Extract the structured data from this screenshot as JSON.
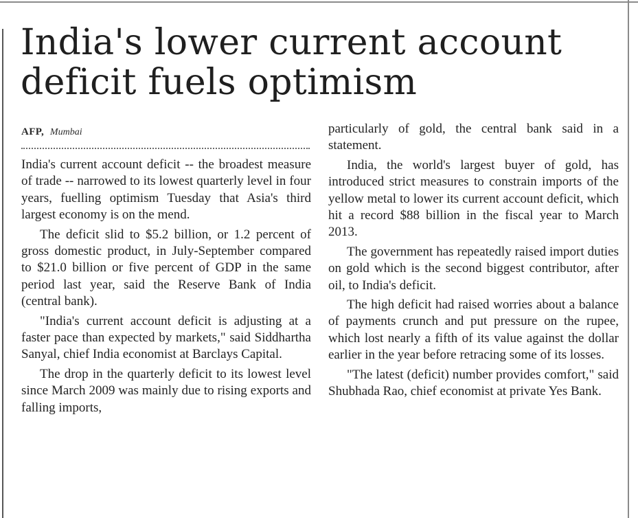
{
  "headline": "India's lower current account deficit fuels optimism",
  "byline": {
    "agency": "AFP,",
    "place": "Mumbai"
  },
  "columns": {
    "left": [
      "India's current account deficit -- the broadest measure of trade -- narrowed to its lowest quarterly level in four years, fuelling optimism Tuesday that Asia's third largest economy is on the mend.",
      "The deficit slid to $5.2 billion, or 1.2 percent of gross domestic product, in July-September compared to $21.0 billion or five percent of GDP in the same period last year, said the Reserve Bank of India (central bank).",
      "\"India's current account deficit is adjusting at a faster pace than expected by markets,\" said Siddhartha Sanyal, chief India economist at Barclays Capital.",
      "The drop in the quarterly deficit to its lowest level since March 2009 was mainly due to rising exports and falling imports,"
    ],
    "right": [
      "particularly of gold, the central bank said in a statement.",
      "India, the world's largest buyer of gold, has introduced strict measures to constrain imports of the yellow metal to lower its current account deficit, which hit a record $88 billion in the fiscal year to March 2013.",
      "The government has repeatedly raised import duties on gold which is the second biggest contributor, after oil, to India's deficit.",
      "The high deficit had raised worries about a balance of payments crunch and put pressure on the rupee, which lost nearly a fifth of its value against the dollar earlier in the year before retracing some of its losses.",
      "\"The latest (deficit) number provides comfort,\" said Shubhada Rao, chief economist at private Yes Bank."
    ]
  }
}
